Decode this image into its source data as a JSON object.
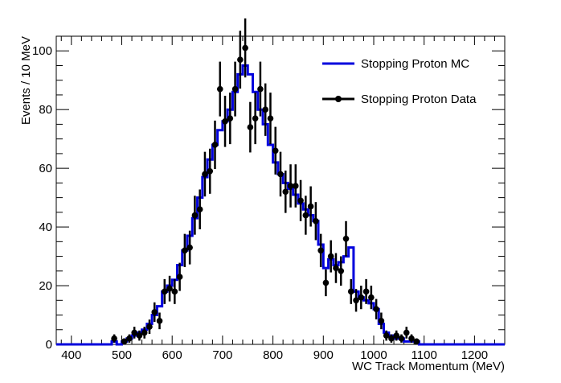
{
  "chart_data": {
    "type": "histogram",
    "xlabel": "WC Track Momentum (MeV)",
    "ylabel": "Events / 10 MeV",
    "xlim": [
      370,
      1260
    ],
    "ylim": [
      0,
      105
    ],
    "x_ticks": [
      400,
      500,
      600,
      700,
      800,
      900,
      1000,
      1100,
      1200
    ],
    "y_ticks": [
      0,
      20,
      40,
      60,
      80,
      100
    ],
    "bin_width": 10,
    "legend_position": "top-right",
    "series": [
      {
        "name": "Stopping Proton MC",
        "style": "step",
        "color": "#0000dd",
        "bin_centers": [
          485,
          495,
          505,
          515,
          525,
          535,
          545,
          555,
          565,
          575,
          585,
          595,
          605,
          615,
          625,
          635,
          645,
          655,
          665,
          675,
          685,
          695,
          705,
          715,
          725,
          735,
          745,
          755,
          765,
          775,
          785,
          795,
          805,
          815,
          825,
          835,
          845,
          855,
          865,
          875,
          885,
          895,
          905,
          915,
          925,
          935,
          945,
          955,
          965,
          975,
          985,
          995,
          1005,
          1015,
          1025,
          1035,
          1045,
          1055,
          1065,
          1075,
          1085,
          1095
        ],
        "values": [
          1,
          0,
          1,
          2,
          3,
          4,
          5,
          7,
          10,
          13,
          18,
          20,
          22,
          27,
          32,
          37,
          43,
          50,
          57,
          63,
          68,
          73,
          76,
          80,
          86,
          92,
          95,
          92,
          86,
          80,
          75,
          68,
          62,
          58,
          55,
          53,
          51,
          48,
          46,
          44,
          42,
          34,
          26,
          29,
          27,
          28,
          30,
          33,
          18,
          16,
          15,
          14,
          12,
          7,
          4,
          3,
          2,
          2,
          1,
          1,
          1,
          0
        ]
      },
      {
        "name": "Stopping Proton Data",
        "style": "points-with-error-bars",
        "color": "#000000",
        "bin_centers": [
          485,
          495,
          505,
          515,
          525,
          535,
          545,
          555,
          565,
          575,
          585,
          595,
          605,
          615,
          625,
          635,
          645,
          655,
          665,
          675,
          685,
          695,
          705,
          715,
          725,
          735,
          745,
          755,
          765,
          775,
          785,
          795,
          805,
          815,
          825,
          835,
          845,
          855,
          865,
          875,
          885,
          895,
          905,
          915,
          925,
          935,
          945,
          955,
          965,
          975,
          985,
          995,
          1005,
          1015,
          1025,
          1035,
          1045,
          1055,
          1065,
          1075,
          1085,
          1095
        ],
        "values": [
          2,
          0,
          1,
          2,
          4,
          3,
          4,
          6,
          11,
          8,
          18,
          19,
          18,
          23,
          32,
          33,
          44,
          46,
          58,
          59,
          68,
          87,
          76,
          77,
          87,
          97,
          101,
          74,
          77,
          87,
          80,
          77,
          66,
          58,
          52,
          54,
          54,
          49,
          44,
          47,
          42,
          32,
          21,
          30,
          26,
          25,
          36,
          18,
          15,
          16,
          18,
          16,
          12,
          8,
          3,
          2,
          3,
          2,
          4,
          2,
          1,
          0
        ]
      }
    ]
  }
}
